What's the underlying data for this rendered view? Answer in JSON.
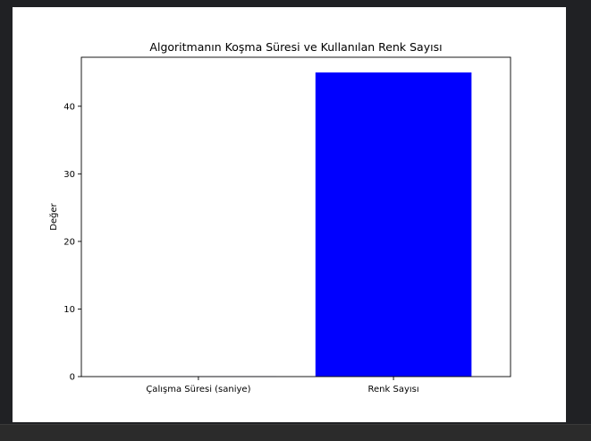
{
  "colors": {
    "bar_colors": [
      "#0000ff",
      "#0000ff"
    ],
    "frame_bg": "#202124",
    "figure_bg": "#ffffff"
  },
  "chart_data": {
    "type": "bar",
    "title": "Algoritmanın Koşma Süresi ve Kullanılan Renk Sayısı",
    "xlabel": "",
    "ylabel": "Değer",
    "categories": [
      "Çalışma Süresi (saniye)",
      "Renk Sayısı"
    ],
    "values": [
      0.02,
      45
    ],
    "ylim": [
      0,
      47.25
    ],
    "yticks": [
      0,
      10,
      20,
      30,
      40
    ],
    "grid": false,
    "legend": "none"
  }
}
